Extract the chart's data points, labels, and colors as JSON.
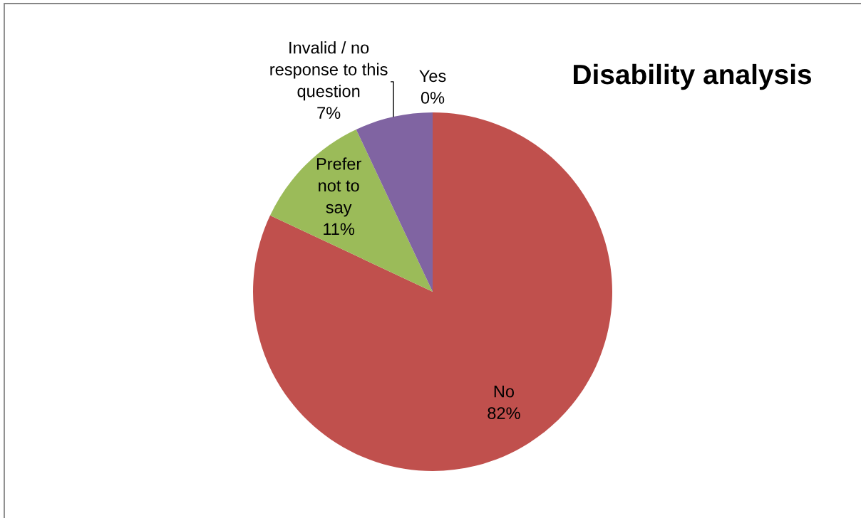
{
  "chart_data": {
    "type": "pie",
    "title": "Disability analysis",
    "categories": [
      "Yes",
      "No",
      "Prefer\nnot to\nsay",
      "Invalid / no\nresponse to this\nquestion"
    ],
    "values": [
      0,
      82,
      11,
      7
    ],
    "colors": [
      "#4f81bd",
      "#c0504d",
      "#9bbb59",
      "#8064a2"
    ],
    "value_labels": [
      "0%",
      "82%",
      "11%",
      "7%"
    ]
  }
}
